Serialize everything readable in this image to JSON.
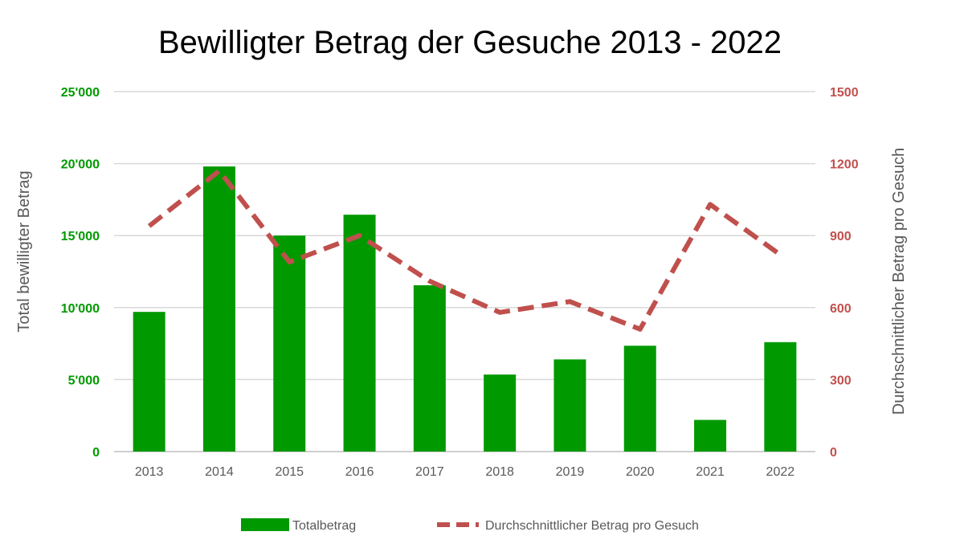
{
  "chart_data": {
    "type": "bar",
    "title": "Bewilligter Betrag der Gesuche 2013 - 2022",
    "categories": [
      "2013",
      "2014",
      "2015",
      "2016",
      "2017",
      "2018",
      "2019",
      "2020",
      "2021",
      "2022"
    ],
    "series": [
      {
        "name": "Totalbetrag",
        "type": "bar",
        "axis": "left",
        "color": "#009900",
        "values": [
          9700,
          19800,
          15000,
          16450,
          11550,
          5350,
          6400,
          7350,
          2200,
          7600
        ]
      },
      {
        "name": "Durchschnittlicher Betrag pro Gesuch",
        "type": "line",
        "style": "dashed",
        "axis": "right",
        "color": "#C0504D",
        "values": [
          940,
          1170,
          790,
          900,
          710,
          580,
          625,
          510,
          1030,
          820
        ]
      }
    ],
    "y_left": {
      "label": "Total bewilligter Betrag",
      "range": [
        0,
        25000
      ],
      "ticks": [
        0,
        5000,
        10000,
        15000,
        20000,
        25000
      ],
      "tick_labels": [
        "0",
        "5'000",
        "10'000",
        "15'000",
        "20'000",
        "25'000"
      ],
      "tick_color": "#009900"
    },
    "y_right": {
      "label": "Durchschnittlicher Betrag pro Gesuch",
      "range": [
        0,
        1500
      ],
      "ticks": [
        0,
        300,
        600,
        900,
        1200,
        1500
      ],
      "tick_labels": [
        "0",
        "300",
        "600",
        "900",
        "1200",
        "1500"
      ],
      "tick_color": "#C0504D"
    },
    "grid": true,
    "legend_position": "bottom"
  }
}
